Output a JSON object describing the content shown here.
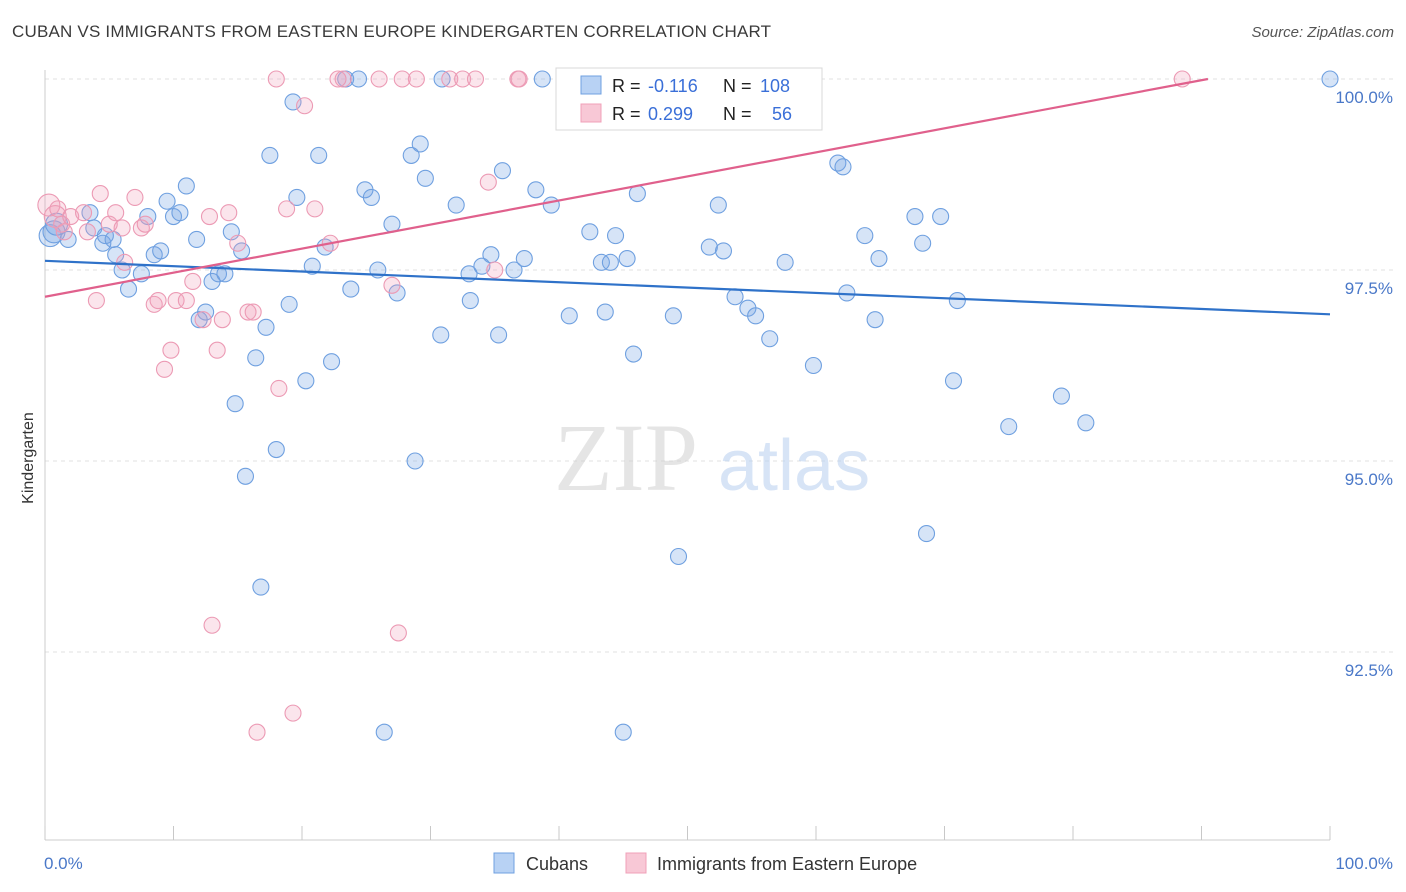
{
  "title": "CUBAN VS IMMIGRANTS FROM EASTERN EUROPE KINDERGARTEN CORRELATION CHART",
  "source": "Source: ZipAtlas.com",
  "watermark": {
    "zip": "ZIP",
    "atlas": "atlas"
  },
  "legend": {
    "rows": [
      {
        "r_label": "R =",
        "r_value": "-0.116",
        "n_label": "N =",
        "n_value": "108",
        "color": "#6fa0e0"
      },
      {
        "r_label": "R =",
        "r_value": "0.299",
        "n_label": "N =",
        "n_value": "56",
        "color": "#f0a0b8"
      }
    ]
  },
  "bottom_legend": [
    {
      "label": "Cubans",
      "color": "#6fa0e0"
    },
    {
      "label": "Immigrants from Eastern Europe",
      "color": "#f0a0b8"
    }
  ],
  "chart_data": {
    "type": "scatter",
    "title": "CUBAN VS IMMIGRANTS FROM EASTERN EUROPE KINDERGARTEN CORRELATION CHART",
    "xlabel": "",
    "ylabel": "Kindergarten",
    "xlim": [
      0,
      100
    ],
    "ylim": [
      90.0,
      100.4
    ],
    "x_tick_labels": [
      "0.0%",
      "100.0%"
    ],
    "y_ticks": [
      {
        "value": 92.5,
        "label": "92.5%"
      },
      {
        "value": 95.0,
        "label": "95.0%"
      },
      {
        "value": 97.5,
        "label": "97.5%"
      },
      {
        "value": 100.0,
        "label": "100.0%"
      }
    ],
    "grid": true,
    "legend_position": "top-center",
    "series": [
      {
        "name": "Cubans",
        "color": "#6fa0e0",
        "line_color": "#2f72c9",
        "trend": [
          [
            0,
            97.62
          ],
          [
            100,
            96.92
          ]
        ],
        "points": [
          [
            0.4,
            97.95
          ],
          [
            0.7,
            98.0
          ],
          [
            0.9,
            98.1
          ],
          [
            1.8,
            97.9
          ],
          [
            3.5,
            98.25
          ],
          [
            3.8,
            98.05
          ],
          [
            4.5,
            97.85
          ],
          [
            4.7,
            97.95
          ],
          [
            5.3,
            97.9
          ],
          [
            5.5,
            97.7
          ],
          [
            6.0,
            97.5
          ],
          [
            6.5,
            97.25
          ],
          [
            7.5,
            97.45
          ],
          [
            8.0,
            98.2
          ],
          [
            8.5,
            97.7
          ],
          [
            9.0,
            97.75
          ],
          [
            9.5,
            98.4
          ],
          [
            10.0,
            98.2
          ],
          [
            10.5,
            98.25
          ],
          [
            11.0,
            98.6
          ],
          [
            11.8,
            97.9
          ],
          [
            12.0,
            96.85
          ],
          [
            12.5,
            96.95
          ],
          [
            13.0,
            97.35
          ],
          [
            13.5,
            97.45
          ],
          [
            14.0,
            97.45
          ],
          [
            14.5,
            98.0
          ],
          [
            14.8,
            95.75
          ],
          [
            15.3,
            97.75
          ],
          [
            15.6,
            94.8
          ],
          [
            16.4,
            96.35
          ],
          [
            16.8,
            93.35
          ],
          [
            17.2,
            96.75
          ],
          [
            17.5,
            99.0
          ],
          [
            18.0,
            95.15
          ],
          [
            19.0,
            97.05
          ],
          [
            19.3,
            99.7
          ],
          [
            19.6,
            98.45
          ],
          [
            20.3,
            96.05
          ],
          [
            20.8,
            97.55
          ],
          [
            21.3,
            99.0
          ],
          [
            21.8,
            97.8
          ],
          [
            22.3,
            96.3
          ],
          [
            23.4,
            100.0
          ],
          [
            23.8,
            97.25
          ],
          [
            24.4,
            100.0
          ],
          [
            24.9,
            98.55
          ],
          [
            25.4,
            98.45
          ],
          [
            25.9,
            97.5
          ],
          [
            26.4,
            91.45
          ],
          [
            27.0,
            98.1
          ],
          [
            27.4,
            97.2
          ],
          [
            28.5,
            99.0
          ],
          [
            28.8,
            95.0
          ],
          [
            29.2,
            99.15
          ],
          [
            29.6,
            98.7
          ],
          [
            30.8,
            96.65
          ],
          [
            30.9,
            100.0
          ],
          [
            32.0,
            98.35
          ],
          [
            33.0,
            97.45
          ],
          [
            33.1,
            97.1
          ],
          [
            34.0,
            97.55
          ],
          [
            34.7,
            97.7
          ],
          [
            35.3,
            96.65
          ],
          [
            35.6,
            98.8
          ],
          [
            36.5,
            97.5
          ],
          [
            37.3,
            97.65
          ],
          [
            38.2,
            98.55
          ],
          [
            38.7,
            100.0
          ],
          [
            39.4,
            98.35
          ],
          [
            40.8,
            96.9
          ],
          [
            42.4,
            98.0
          ],
          [
            43.3,
            97.6
          ],
          [
            43.6,
            96.95
          ],
          [
            44.0,
            97.6
          ],
          [
            44.4,
            97.95
          ],
          [
            45.0,
            91.45
          ],
          [
            45.3,
            97.65
          ],
          [
            45.8,
            96.4
          ],
          [
            46.1,
            98.5
          ],
          [
            48.9,
            96.9
          ],
          [
            49.3,
            93.75
          ],
          [
            51.7,
            97.8
          ],
          [
            52.4,
            98.35
          ],
          [
            52.8,
            97.75
          ],
          [
            53.7,
            97.15
          ],
          [
            54.7,
            97.0
          ],
          [
            55.3,
            96.9
          ],
          [
            56.4,
            96.6
          ],
          [
            57.6,
            97.6
          ],
          [
            59.8,
            96.25
          ],
          [
            61.7,
            98.9
          ],
          [
            62.1,
            98.85
          ],
          [
            62.4,
            97.2
          ],
          [
            63.8,
            97.95
          ],
          [
            64.6,
            96.85
          ],
          [
            64.9,
            97.65
          ],
          [
            67.7,
            98.2
          ],
          [
            68.3,
            97.85
          ],
          [
            68.6,
            94.05
          ],
          [
            69.7,
            98.2
          ],
          [
            70.7,
            96.05
          ],
          [
            71.0,
            97.1
          ],
          [
            75.0,
            95.45
          ],
          [
            79.1,
            95.85
          ],
          [
            81.0,
            95.5
          ],
          [
            100.0,
            100.0
          ]
        ]
      },
      {
        "name": "Immigrants from Eastern Europe",
        "color": "#f0a0b8",
        "line_color": "#e0608c",
        "trend": [
          [
            0,
            97.15
          ],
          [
            90.5,
            100.0
          ]
        ],
        "points": [
          [
            0.3,
            98.35
          ],
          [
            0.8,
            98.2
          ],
          [
            1.0,
            98.3
          ],
          [
            1.3,
            98.1
          ],
          [
            2.0,
            98.2
          ],
          [
            3.0,
            98.25
          ],
          [
            3.3,
            98.0
          ],
          [
            4.0,
            97.1
          ],
          [
            4.3,
            98.5
          ],
          [
            5.0,
            98.1
          ],
          [
            5.5,
            98.25
          ],
          [
            6.0,
            98.05
          ],
          [
            6.2,
            97.6
          ],
          [
            7.0,
            98.45
          ],
          [
            7.5,
            98.05
          ],
          [
            7.8,
            98.1
          ],
          [
            8.5,
            97.05
          ],
          [
            8.8,
            97.1
          ],
          [
            9.3,
            96.2
          ],
          [
            9.8,
            96.45
          ],
          [
            10.2,
            97.1
          ],
          [
            11.0,
            97.1
          ],
          [
            11.5,
            97.35
          ],
          [
            12.3,
            96.85
          ],
          [
            12.8,
            98.2
          ],
          [
            13.0,
            92.85
          ],
          [
            13.4,
            96.45
          ],
          [
            13.8,
            96.85
          ],
          [
            14.3,
            98.25
          ],
          [
            15.0,
            97.85
          ],
          [
            15.8,
            96.95
          ],
          [
            16.2,
            96.95
          ],
          [
            16.5,
            91.45
          ],
          [
            18.2,
            95.95
          ],
          [
            18.8,
            98.3
          ],
          [
            19.3,
            91.7
          ],
          [
            20.2,
            99.65
          ],
          [
            21.0,
            98.3
          ],
          [
            22.2,
            97.85
          ],
          [
            23.2,
            100.0
          ],
          [
            26.0,
            100.0
          ],
          [
            27.0,
            97.3
          ],
          [
            27.5,
            92.75
          ],
          [
            28.9,
            100.0
          ],
          [
            31.5,
            100.0
          ],
          [
            32.5,
            100.0
          ],
          [
            33.5,
            100.0
          ],
          [
            34.5,
            98.65
          ],
          [
            35.0,
            97.5
          ],
          [
            36.8,
            100.0
          ],
          [
            36.9,
            100.0
          ],
          [
            18.0,
            100.0
          ],
          [
            22.8,
            100.0
          ],
          [
            27.8,
            100.0
          ],
          [
            88.5,
            100.0
          ],
          [
            1.5,
            98.0
          ]
        ]
      }
    ]
  }
}
